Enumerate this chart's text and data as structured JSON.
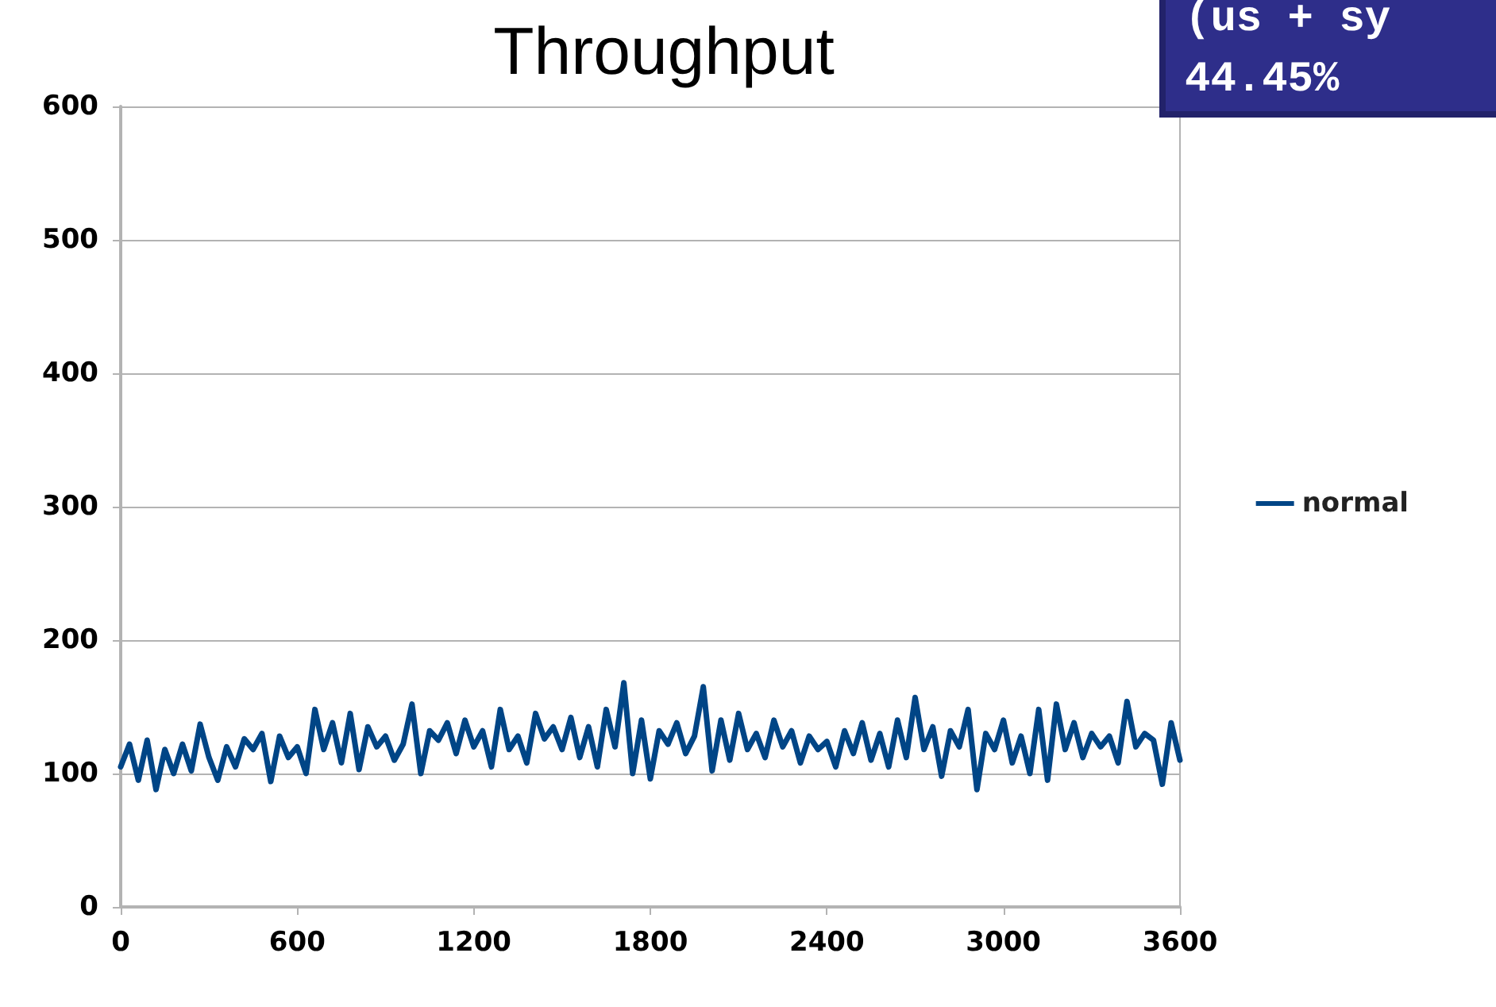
{
  "chart_data": {
    "type": "line",
    "title": "Throughput",
    "annotations": [
      "(us + sy",
      "44.45%"
    ],
    "x": [
      0,
      30,
      60,
      90,
      120,
      150,
      180,
      210,
      240,
      270,
      300,
      330,
      360,
      390,
      420,
      450,
      480,
      510,
      540,
      570,
      600,
      630,
      660,
      690,
      720,
      750,
      780,
      810,
      840,
      870,
      900,
      930,
      960,
      990,
      1020,
      1050,
      1080,
      1110,
      1140,
      1170,
      1200,
      1230,
      1260,
      1290,
      1320,
      1350,
      1380,
      1410,
      1440,
      1470,
      1500,
      1530,
      1560,
      1590,
      1620,
      1650,
      1680,
      1710,
      1740,
      1770,
      1800,
      1830,
      1860,
      1890,
      1920,
      1950,
      1980,
      2010,
      2040,
      2070,
      2100,
      2130,
      2160,
      2190,
      2220,
      2250,
      2280,
      2310,
      2340,
      2370,
      2400,
      2430,
      2460,
      2490,
      2520,
      2550,
      2580,
      2610,
      2640,
      2670,
      2700,
      2730,
      2760,
      2790,
      2820,
      2850,
      2880,
      2910,
      2940,
      2970,
      3000,
      3030,
      3060,
      3090,
      3120,
      3150,
      3180,
      3210,
      3240,
      3270,
      3300,
      3330,
      3360,
      3390,
      3420,
      3450,
      3480,
      3510,
      3540,
      3570,
      3600
    ],
    "series": [
      {
        "name": "normal",
        "color": "#004586",
        "values": [
          105,
          122,
          95,
          125,
          88,
          118,
          100,
          122,
          102,
          137,
          112,
          95,
          120,
          105,
          126,
          118,
          130,
          94,
          128,
          112,
          120,
          100,
          148,
          118,
          138,
          108,
          145,
          103,
          135,
          120,
          128,
          110,
          122,
          152,
          100,
          132,
          125,
          138,
          115,
          140,
          120,
          132,
          105,
          148,
          118,
          128,
          108,
          145,
          126,
          135,
          118,
          142,
          112,
          135,
          105,
          148,
          120,
          168,
          100,
          140,
          96,
          132,
          122,
          138,
          115,
          128,
          165,
          102,
          140,
          110,
          145,
          118,
          130,
          112,
          140,
          120,
          132,
          108,
          128,
          118,
          124,
          105,
          132,
          115,
          138,
          110,
          130,
          105,
          140,
          112,
          157,
          118,
          135,
          98,
          132,
          120,
          148,
          88,
          130,
          118,
          140,
          108,
          128,
          100,
          148,
          95,
          152,
          118,
          138,
          112,
          130,
          120,
          128,
          108,
          154,
          120,
          130,
          125,
          92,
          138,
          110
        ]
      }
    ],
    "xlim": [
      0,
      3600
    ],
    "xticks": [
      0,
      600,
      1200,
      1800,
      2400,
      3000,
      3600
    ],
    "ylim": [
      0,
      600
    ],
    "yticks": [
      0,
      100,
      200,
      300,
      400,
      500,
      600
    ],
    "grid": "y",
    "legend": "right",
    "marker": "none",
    "line_style": "solid"
  }
}
